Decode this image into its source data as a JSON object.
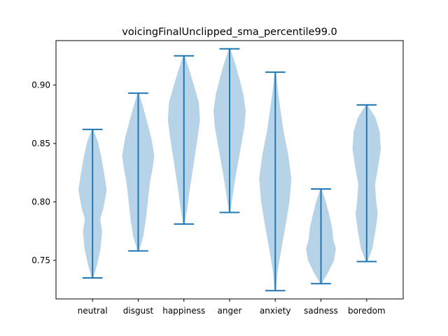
{
  "chart_data": {
    "type": "violin",
    "title": "voicingFinalUnclipped_sma_percentile99.0",
    "xlabel": "",
    "ylabel": "",
    "categories": [
      "neutral",
      "disgust",
      "happiness",
      "anger",
      "anxiety",
      "sadness",
      "boredom"
    ],
    "ylim": [
      0.717,
      0.938
    ],
    "yticks": [
      0.75,
      0.8,
      0.85,
      0.9
    ],
    "ytick_labels": [
      "0.75",
      "0.80",
      "0.85",
      "0.90"
    ],
    "grid": false,
    "colors": {
      "body": "#b6d3e8",
      "line": "#1f77b4"
    },
    "series": [
      {
        "category": "neutral",
        "min": 0.735,
        "max": 0.862,
        "density": [
          [
            0.735,
            0.02
          ],
          [
            0.745,
            0.2
          ],
          [
            0.76,
            0.4
          ],
          [
            0.775,
            0.48
          ],
          [
            0.785,
            0.38
          ],
          [
            0.795,
            0.55
          ],
          [
            0.81,
            0.72
          ],
          [
            0.825,
            0.58
          ],
          [
            0.84,
            0.42
          ],
          [
            0.852,
            0.25
          ],
          [
            0.862,
            0.02
          ]
        ]
      },
      {
        "category": "disgust",
        "min": 0.758,
        "max": 0.893,
        "density": [
          [
            0.758,
            0.02
          ],
          [
            0.77,
            0.24
          ],
          [
            0.785,
            0.38
          ],
          [
            0.8,
            0.48
          ],
          [
            0.815,
            0.58
          ],
          [
            0.83,
            0.74
          ],
          [
            0.84,
            0.82
          ],
          [
            0.855,
            0.66
          ],
          [
            0.87,
            0.42
          ],
          [
            0.882,
            0.22
          ],
          [
            0.893,
            0.02
          ]
        ]
      },
      {
        "category": "happiness",
        "min": 0.781,
        "max": 0.925,
        "density": [
          [
            0.781,
            0.02
          ],
          [
            0.795,
            0.16
          ],
          [
            0.81,
            0.28
          ],
          [
            0.825,
            0.42
          ],
          [
            0.84,
            0.56
          ],
          [
            0.855,
            0.7
          ],
          [
            0.87,
            0.82
          ],
          [
            0.885,
            0.76
          ],
          [
            0.9,
            0.5
          ],
          [
            0.913,
            0.26
          ],
          [
            0.925,
            0.02
          ]
        ]
      },
      {
        "category": "anger",
        "min": 0.791,
        "max": 0.931,
        "density": [
          [
            0.791,
            0.02
          ],
          [
            0.805,
            0.14
          ],
          [
            0.82,
            0.28
          ],
          [
            0.835,
            0.44
          ],
          [
            0.85,
            0.6
          ],
          [
            0.865,
            0.76
          ],
          [
            0.878,
            0.82
          ],
          [
            0.892,
            0.7
          ],
          [
            0.905,
            0.5
          ],
          [
            0.918,
            0.28
          ],
          [
            0.931,
            0.02
          ]
        ]
      },
      {
        "category": "anxiety",
        "min": 0.724,
        "max": 0.911,
        "density": [
          [
            0.724,
            0.02
          ],
          [
            0.74,
            0.1
          ],
          [
            0.76,
            0.3
          ],
          [
            0.78,
            0.52
          ],
          [
            0.8,
            0.72
          ],
          [
            0.82,
            0.82
          ],
          [
            0.84,
            0.66
          ],
          [
            0.86,
            0.42
          ],
          [
            0.88,
            0.24
          ],
          [
            0.895,
            0.12
          ],
          [
            0.911,
            0.02
          ]
        ]
      },
      {
        "category": "sadness",
        "min": 0.73,
        "max": 0.811,
        "density": [
          [
            0.73,
            0.02
          ],
          [
            0.74,
            0.36
          ],
          [
            0.75,
            0.66
          ],
          [
            0.76,
            0.76
          ],
          [
            0.768,
            0.62
          ],
          [
            0.778,
            0.56
          ],
          [
            0.788,
            0.42
          ],
          [
            0.8,
            0.24
          ],
          [
            0.811,
            0.02
          ]
        ]
      },
      {
        "category": "boredom",
        "min": 0.749,
        "max": 0.883,
        "density": [
          [
            0.749,
            0.02
          ],
          [
            0.76,
            0.28
          ],
          [
            0.775,
            0.44
          ],
          [
            0.79,
            0.56
          ],
          [
            0.8,
            0.48
          ],
          [
            0.815,
            0.42
          ],
          [
            0.83,
            0.58
          ],
          [
            0.845,
            0.72
          ],
          [
            0.86,
            0.66
          ],
          [
            0.872,
            0.44
          ],
          [
            0.883,
            0.02
          ]
        ]
      }
    ]
  }
}
